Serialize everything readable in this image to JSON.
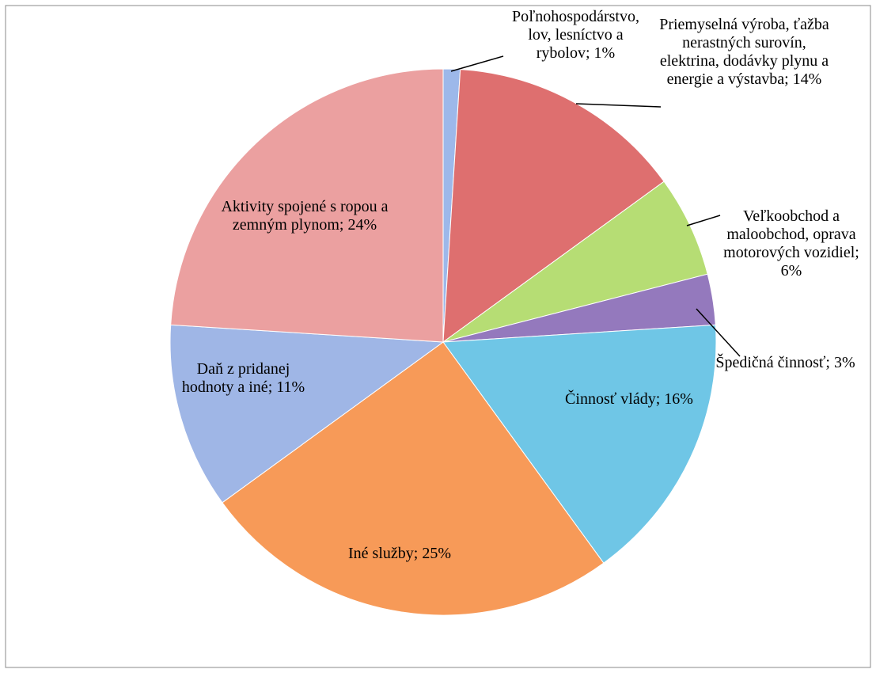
{
  "chart_data": {
    "type": "pie",
    "categories": [
      "Poľnohospodárstvo, lov, lesníctvo a rybolov",
      "Priemyselná výroba, ťažba nerastných surovín, elektrina, dodávky plynu a energie a výstavba",
      "Veľkoobchod a maloobchod, oprava motorových vozidiel",
      "Špedičná činnosť",
      "Činnosť vlády",
      "Iné služby",
      "Daň z pridanej hodnoty a iné",
      "Aktivity spojené s ropou a zemným plynom"
    ],
    "values": [
      1,
      14,
      6,
      3,
      16,
      25,
      11,
      24
    ],
    "value_labels": [
      "1%",
      "14%",
      "6%",
      "3%",
      "16%",
      "25%",
      "11%",
      "24%"
    ],
    "separator": "; ",
    "colors": [
      "#9db8ea",
      "#de6f6f",
      "#b6dd74",
      "#9479bd",
      "#6fc6e6",
      "#f79a58",
      "#9fb6e6",
      "#eba0a0"
    ]
  }
}
